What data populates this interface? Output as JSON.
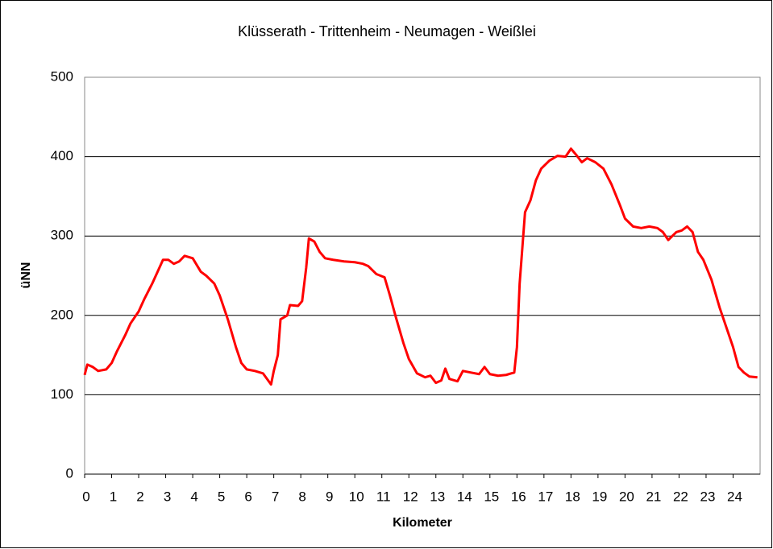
{
  "chart_data": {
    "type": "line",
    "title": "Klüsserath - Trittenheim - Neumagen - Weißlei",
    "x_label": "Kilometer",
    "y_label": "üNN",
    "x": [
      0,
      0.1,
      0.3,
      0.5,
      0.8,
      1,
      1.2,
      1.5,
      1.7,
      2,
      2.2,
      2.5,
      2.7,
      2.9,
      3.1,
      3.3,
      3.5,
      3.7,
      4,
      4.3,
      4.5,
      4.8,
      5,
      5.3,
      5.6,
      5.8,
      6,
      6.3,
      6.6,
      6.9,
      7,
      7.15,
      7.25,
      7.5,
      7.6,
      7.9,
      8.05,
      8.2,
      8.3,
      8.5,
      8.7,
      8.9,
      9.2,
      9.6,
      10,
      10.3,
      10.5,
      10.8,
      11.1,
      11.3,
      11.5,
      11.8,
      12,
      12.3,
      12.6,
      12.8,
      13,
      13.2,
      13.35,
      13.5,
      13.8,
      14,
      14.3,
      14.6,
      14.8,
      15,
      15.3,
      15.6,
      15.9,
      16,
      16.1,
      16.3,
      16.5,
      16.7,
      16.9,
      17.2,
      17.5,
      17.8,
      18,
      18.2,
      18.4,
      18.6,
      18.9,
      19.2,
      19.5,
      19.8,
      20,
      20.3,
      20.6,
      20.9,
      21.2,
      21.4,
      21.6,
      21.9,
      22.1,
      22.3,
      22.5,
      22.7,
      22.9,
      23.2,
      23.5,
      23.8,
      24,
      24.2,
      24.4,
      24.6,
      24.9
    ],
    "series": [
      {
        "color": "#ff0000",
        "values": [
          125,
          138,
          135,
          130,
          132,
          140,
          155,
          175,
          190,
          205,
          220,
          240,
          255,
          270,
          270,
          265,
          268,
          275,
          272,
          255,
          250,
          240,
          225,
          195,
          160,
          140,
          132,
          130,
          127,
          113,
          130,
          150,
          195,
          200,
          213,
          212,
          218,
          260,
          297,
          293,
          280,
          272,
          270,
          268,
          267,
          265,
          262,
          252,
          248,
          225,
          200,
          165,
          145,
          127,
          122,
          124,
          115,
          118,
          133,
          120,
          117,
          130,
          128,
          126,
          135,
          126,
          124,
          125,
          128,
          160,
          240,
          330,
          345,
          370,
          385,
          395,
          401,
          400,
          410,
          402,
          393,
          398,
          393,
          385,
          365,
          340,
          322,
          312,
          310,
          312,
          310,
          305,
          295,
          305,
          307,
          312,
          305,
          280,
          270,
          245,
          210,
          180,
          160,
          135,
          128,
          123,
          122
        ]
      }
    ],
    "xlim": [
      0,
      25
    ],
    "xticks": [
      0,
      1,
      2,
      3,
      4,
      5,
      6,
      7,
      8,
      9,
      10,
      11,
      12,
      13,
      14,
      15,
      16,
      17,
      18,
      19,
      20,
      21,
      22,
      23,
      24
    ],
    "ylim": [
      0,
      500
    ],
    "yticks": [
      0,
      100,
      200,
      300,
      400,
      500
    ],
    "grid": true
  }
}
